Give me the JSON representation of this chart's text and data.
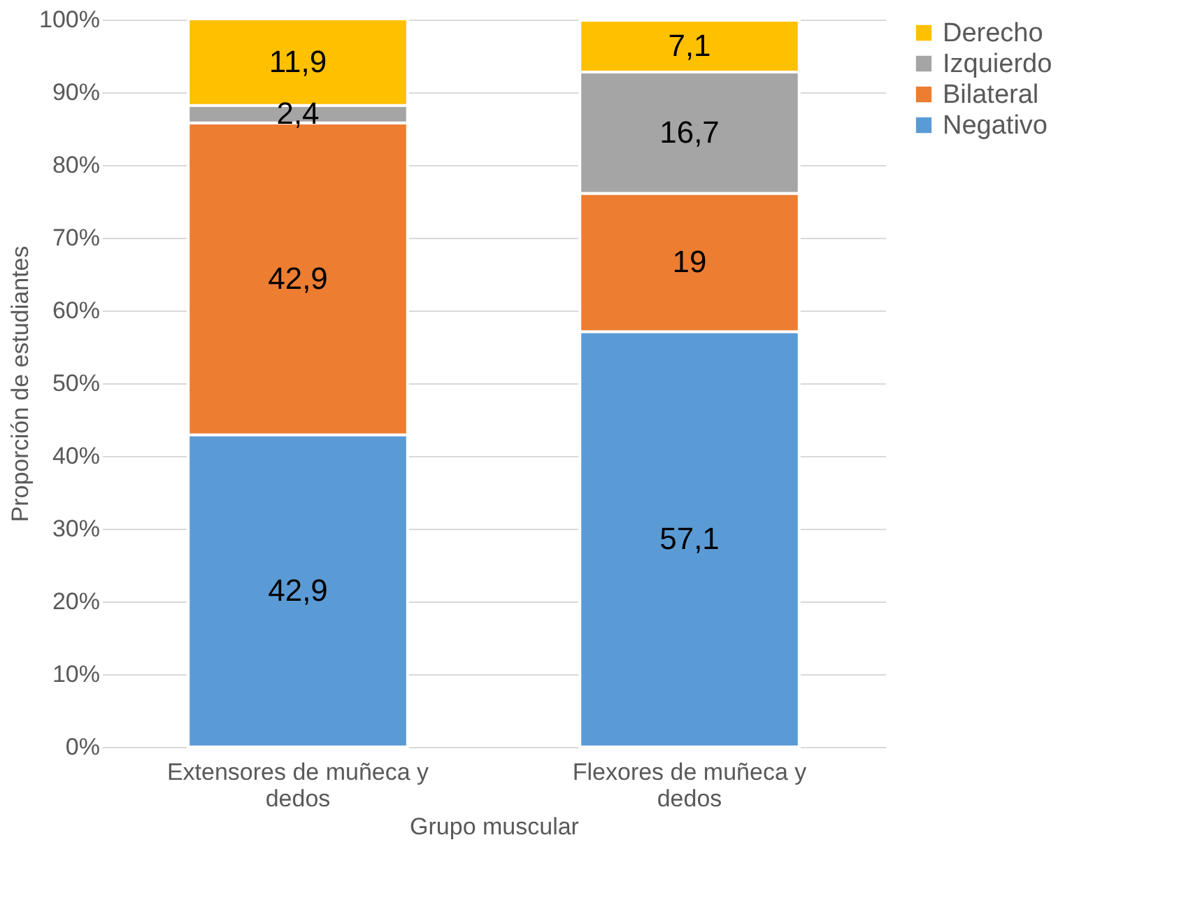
{
  "chart_data": {
    "type": "bar",
    "stacked": true,
    "xlabel": "Grupo muscular",
    "ylabel": "Proporción de estudiantes",
    "categories": [
      "Extensores de muñeca y dedos",
      "Flexores de muñeca y dedos"
    ],
    "series": [
      {
        "name": "Negativo",
        "color": "#5b9bd5",
        "values": [
          42.9,
          57.1
        ],
        "value_labels": [
          "42,9",
          "57,1"
        ]
      },
      {
        "name": "Bilateral",
        "color": "#ed7d31",
        "values": [
          42.9,
          19
        ],
        "value_labels": [
          "42,9",
          "19"
        ]
      },
      {
        "name": "Izquierdo",
        "color": "#a5a5a5",
        "values": [
          2.4,
          16.7
        ],
        "value_labels": [
          "2,4",
          "16,7"
        ]
      },
      {
        "name": "Derecho",
        "color": "#ffc000",
        "values": [
          11.9,
          7.1
        ],
        "value_labels": [
          "11,9",
          "7,1"
        ]
      }
    ],
    "ylim": [
      0,
      100
    ],
    "yticks": [
      {
        "value": 0,
        "label": "0%"
      },
      {
        "value": 10,
        "label": "10%"
      },
      {
        "value": 20,
        "label": "20%"
      },
      {
        "value": 30,
        "label": "30%"
      },
      {
        "value": 40,
        "label": "40%"
      },
      {
        "value": 50,
        "label": "50%"
      },
      {
        "value": 60,
        "label": "60%"
      },
      {
        "value": 70,
        "label": "70%"
      },
      {
        "value": 80,
        "label": "80%"
      },
      {
        "value": 90,
        "label": "90%"
      },
      {
        "value": 100,
        "label": "100%"
      }
    ],
    "grid": "y",
    "legend": "right"
  }
}
